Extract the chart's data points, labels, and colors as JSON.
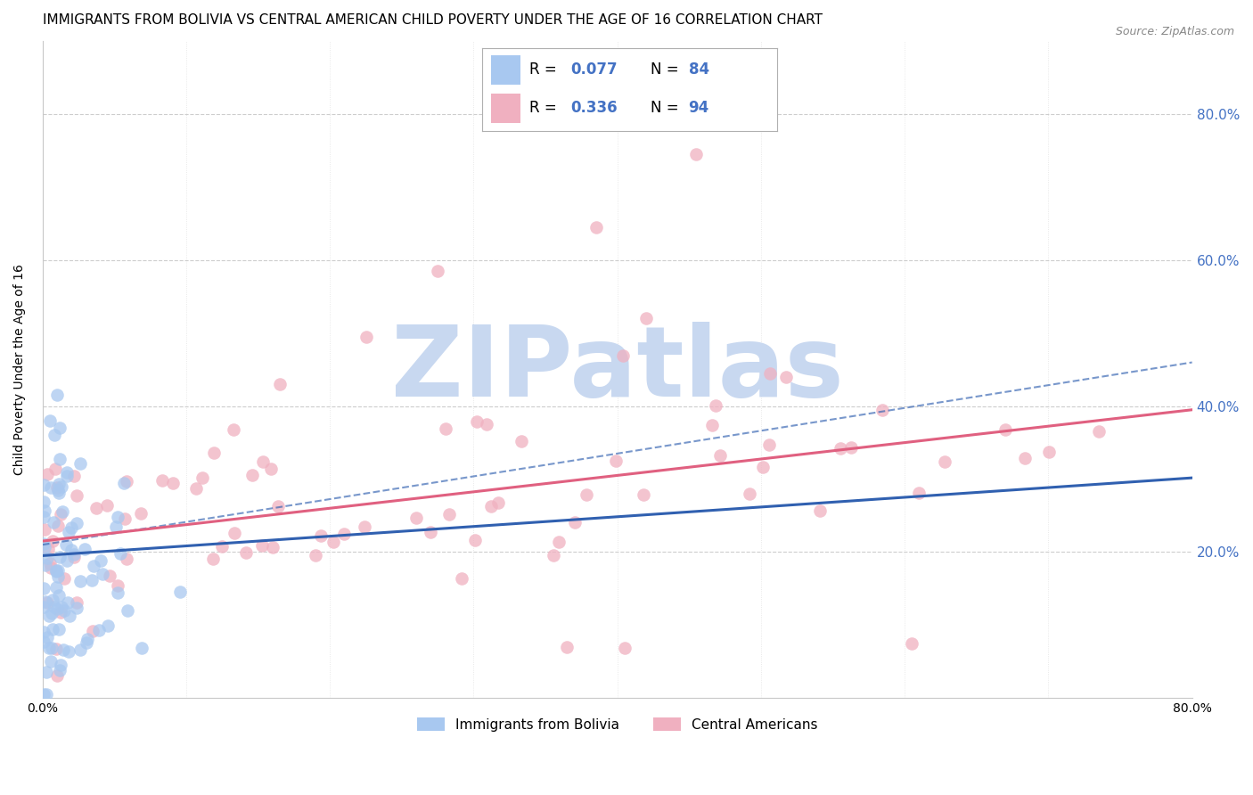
{
  "title": "IMMIGRANTS FROM BOLIVIA VS CENTRAL AMERICAN CHILD POVERTY UNDER THE AGE OF 16 CORRELATION CHART",
  "source": "Source: ZipAtlas.com",
  "ylabel": "Child Poverty Under the Age of 16",
  "xlim": [
    0.0,
    0.8
  ],
  "ylim": [
    0.0,
    0.9
  ],
  "yticks": [
    0.0,
    0.2,
    0.4,
    0.6,
    0.8
  ],
  "ytick_labels": [
    "",
    "20.0%",
    "40.0%",
    "60.0%",
    "80.0%"
  ],
  "xticks": [
    0.0,
    0.1,
    0.2,
    0.3,
    0.4,
    0.5,
    0.6,
    0.7,
    0.8
  ],
  "xtick_labels": [
    "0.0%",
    "",
    "",
    "",
    "",
    "",
    "",
    "",
    "80.0%"
  ],
  "series1_label": "Immigrants from Bolivia",
  "series1_color": "#a8c8f0",
  "series1_line_color": "#3060b0",
  "series2_label": "Central Americans",
  "series2_color": "#f0b0c0",
  "series2_line_color": "#e06080",
  "watermark": "ZIPatlas",
  "watermark_color": "#c8d8f0",
  "grid_color": "#c8c8c8",
  "background_color": "#ffffff",
  "right_axis_color": "#4472c4",
  "title_fontsize": 11,
  "axis_label_fontsize": 10,
  "tick_fontsize": 10,
  "legend_R1": "0.077",
  "legend_N1": "84",
  "legend_R2": "0.336",
  "legend_N2": "94"
}
